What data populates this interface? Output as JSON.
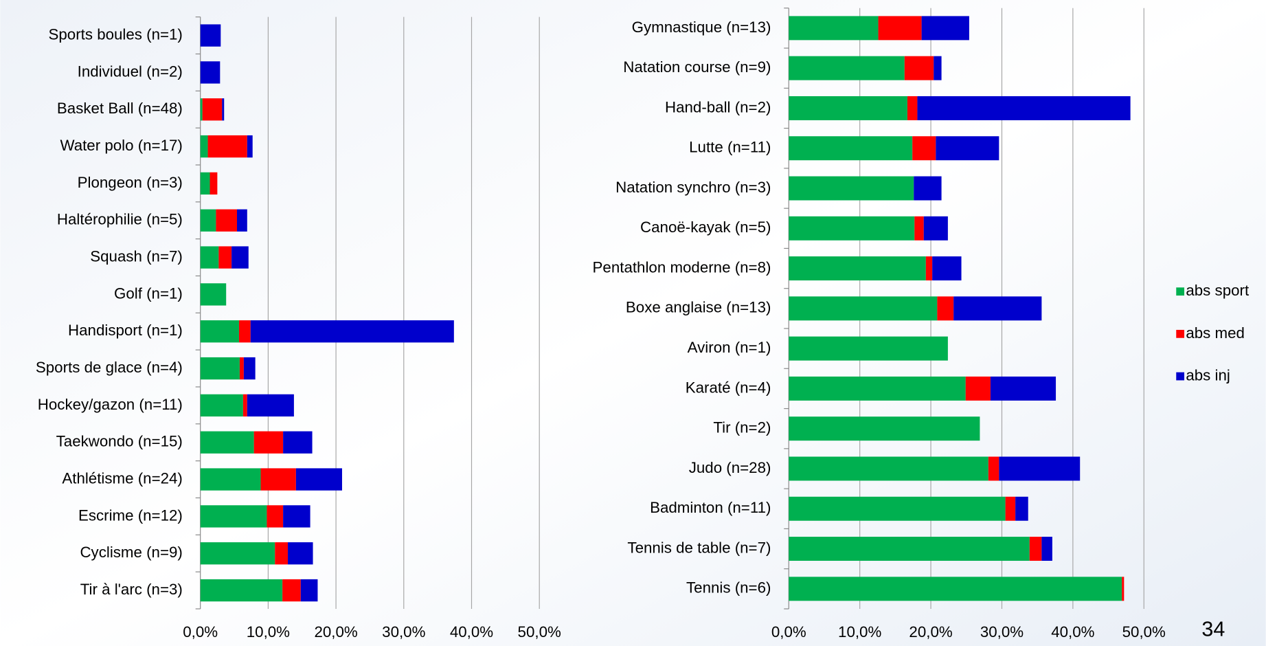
{
  "chart_data": [
    {
      "type": "stacked_bar_horizontal",
      "categories": [
        "Sports boules (n=1)",
        "Individuel (n=2)",
        "Basket Ball (n=48)",
        "Water polo (n=17)",
        "Plongeon (n=3)",
        "Haltérophilie (n=5)",
        "Squash (n=7)",
        "Golf (n=1)",
        "Handisport (n=1)",
        "Sports de glace (n=4)",
        "Hockey/gazon (n=11)",
        "Taekwondo (n=15)",
        "Athlétisme (n=24)",
        "Escrime (n=12)",
        "Cyclisme (n=9)",
        "Tir à l'arc (n=3)"
      ],
      "series": [
        {
          "color": "#00b050",
          "values": [
            0,
            0,
            0.3,
            1.1,
            1.4,
            2.3,
            2.7,
            3.8,
            5.7,
            5.8,
            6.3,
            7.9,
            8.9,
            9.8,
            11.0,
            12.1
          ]
        },
        {
          "color": "#ff0000",
          "values": [
            0,
            0,
            2.9,
            5.8,
            1.1,
            3.1,
            1.9,
            0,
            1.7,
            0.6,
            0.6,
            4.3,
            5.2,
            2.4,
            1.9,
            2.7
          ]
        },
        {
          "color": "#0000cc",
          "values": [
            3.0,
            2.9,
            0.3,
            0.8,
            0,
            1.5,
            2.5,
            0,
            30.0,
            1.7,
            6.9,
            4.3,
            6.8,
            4.0,
            3.7,
            2.5
          ]
        }
      ],
      "xlim": [
        0,
        50
      ],
      "xticks": [
        {
          "value": 0,
          "label": "0,0%"
        },
        {
          "value": 10,
          "label": "10,0%"
        },
        {
          "value": 20,
          "label": "20,0%"
        },
        {
          "value": 30,
          "label": "30,0%"
        },
        {
          "value": 40,
          "label": "40,0%"
        },
        {
          "value": 50,
          "label": "50,0%"
        }
      ],
      "grid": true
    },
    {
      "type": "stacked_bar_horizontal",
      "categories": [
        "Gymnastique (n=13)",
        "Natation course (n=9)",
        "Hand-ball (n=2)",
        "Lutte (n=11)",
        "Natation synchro (n=3)",
        "Canoë-kayak (n=5)",
        "Pentathlon  moderne (n=8)",
        "Boxe anglaise (n=13)",
        "Aviron (n=1)",
        "Karaté (n=4)",
        "Tir (n=2)",
        "Judo (n=28)",
        "Badminton (n=11)",
        "Tennis de table (n=7)",
        "Tennis (n=6)"
      ],
      "series": [
        {
          "name": "abs sport",
          "color": "#00b050",
          "values": [
            12.6,
            16.3,
            16.7,
            17.4,
            17.6,
            17.7,
            19.3,
            20.9,
            22.4,
            24.9,
            26.9,
            28.1,
            30.5,
            33.9,
            46.9
          ]
        },
        {
          "name": "abs med",
          "color": "#ff0000",
          "values": [
            6.1,
            4.1,
            1.4,
            3.3,
            0,
            1.3,
            0.9,
            2.3,
            0,
            3.5,
            0,
            1.5,
            1.4,
            1.7,
            0.3
          ]
        },
        {
          "name": "abs inj",
          "color": "#0000cc",
          "values": [
            6.7,
            1.1,
            30.0,
            8.9,
            3.9,
            3.4,
            4.1,
            12.4,
            0,
            9.2,
            0,
            11.4,
            1.8,
            1.5,
            0
          ]
        }
      ],
      "xlim": [
        0,
        50
      ],
      "xticks": [
        {
          "value": 0,
          "label": "0,0%"
        },
        {
          "value": 10,
          "label": "10,0%"
        },
        {
          "value": 20,
          "label": "20,0%"
        },
        {
          "value": 30,
          "label": "30,0%"
        },
        {
          "value": 40,
          "label": "40,0%"
        },
        {
          "value": 50,
          "label": "50,0%"
        }
      ],
      "grid": true,
      "legend": "right"
    }
  ],
  "page_number": "34"
}
